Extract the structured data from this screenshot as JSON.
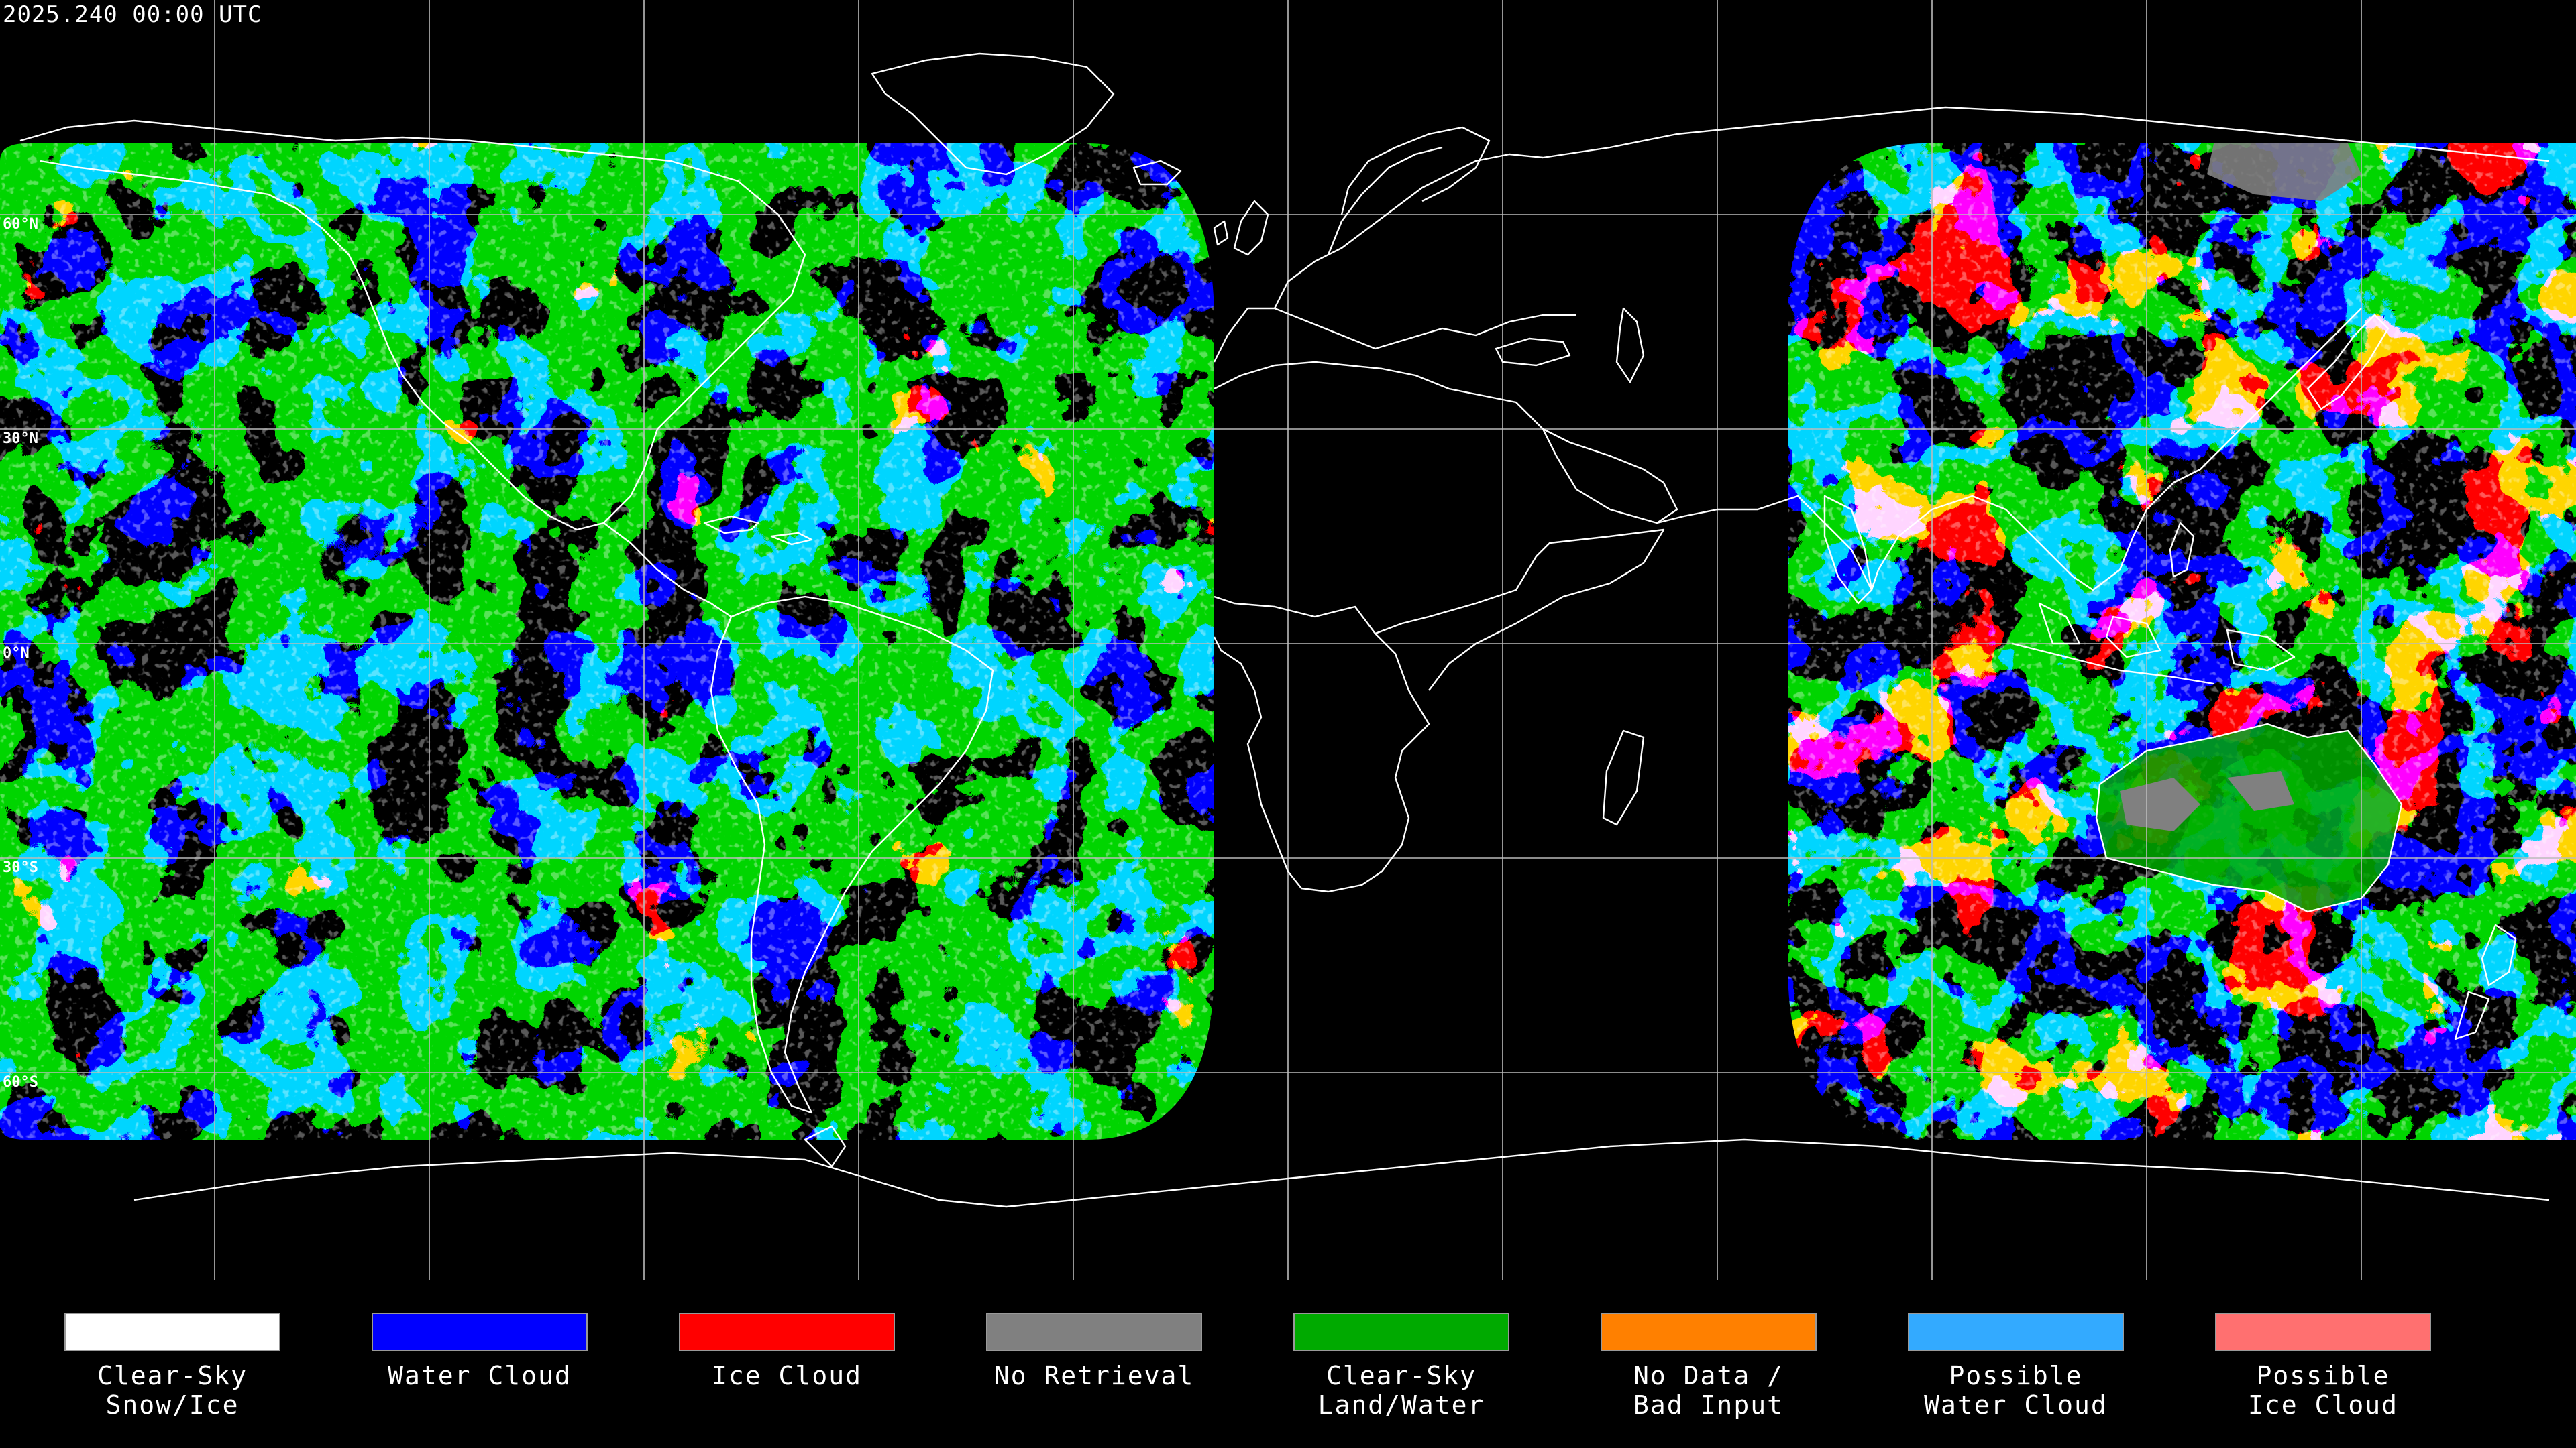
{
  "timestamp": "2025.240 00:00 UTC",
  "lat_labels": {
    "n60": "60°N",
    "n30": "30°N",
    "eq": "0°N",
    "s30": "30°S",
    "s60": "60°S"
  },
  "legend": [
    {
      "label": "Clear-Sky\nSnow/Ice",
      "color": "#ffffff"
    },
    {
      "label": "Water Cloud",
      "color": "#0000ff"
    },
    {
      "label": "Ice Cloud",
      "color": "#ff0000"
    },
    {
      "label": "No Retrieval",
      "color": "#808080"
    },
    {
      "label": "Clear-Sky\nLand/Water",
      "color": "#00aa00"
    },
    {
      "label": "No Data /\nBad Input",
      "color": "#ff8000"
    },
    {
      "label": "Possible\nWater Cloud",
      "color": "#33aaff"
    },
    {
      "label": "Possible\nIce Cloud",
      "color": "#ff7070"
    }
  ],
  "colors": {
    "background": "#000000",
    "grid": "#bbbbbb",
    "coastline": "#ffffff"
  }
}
